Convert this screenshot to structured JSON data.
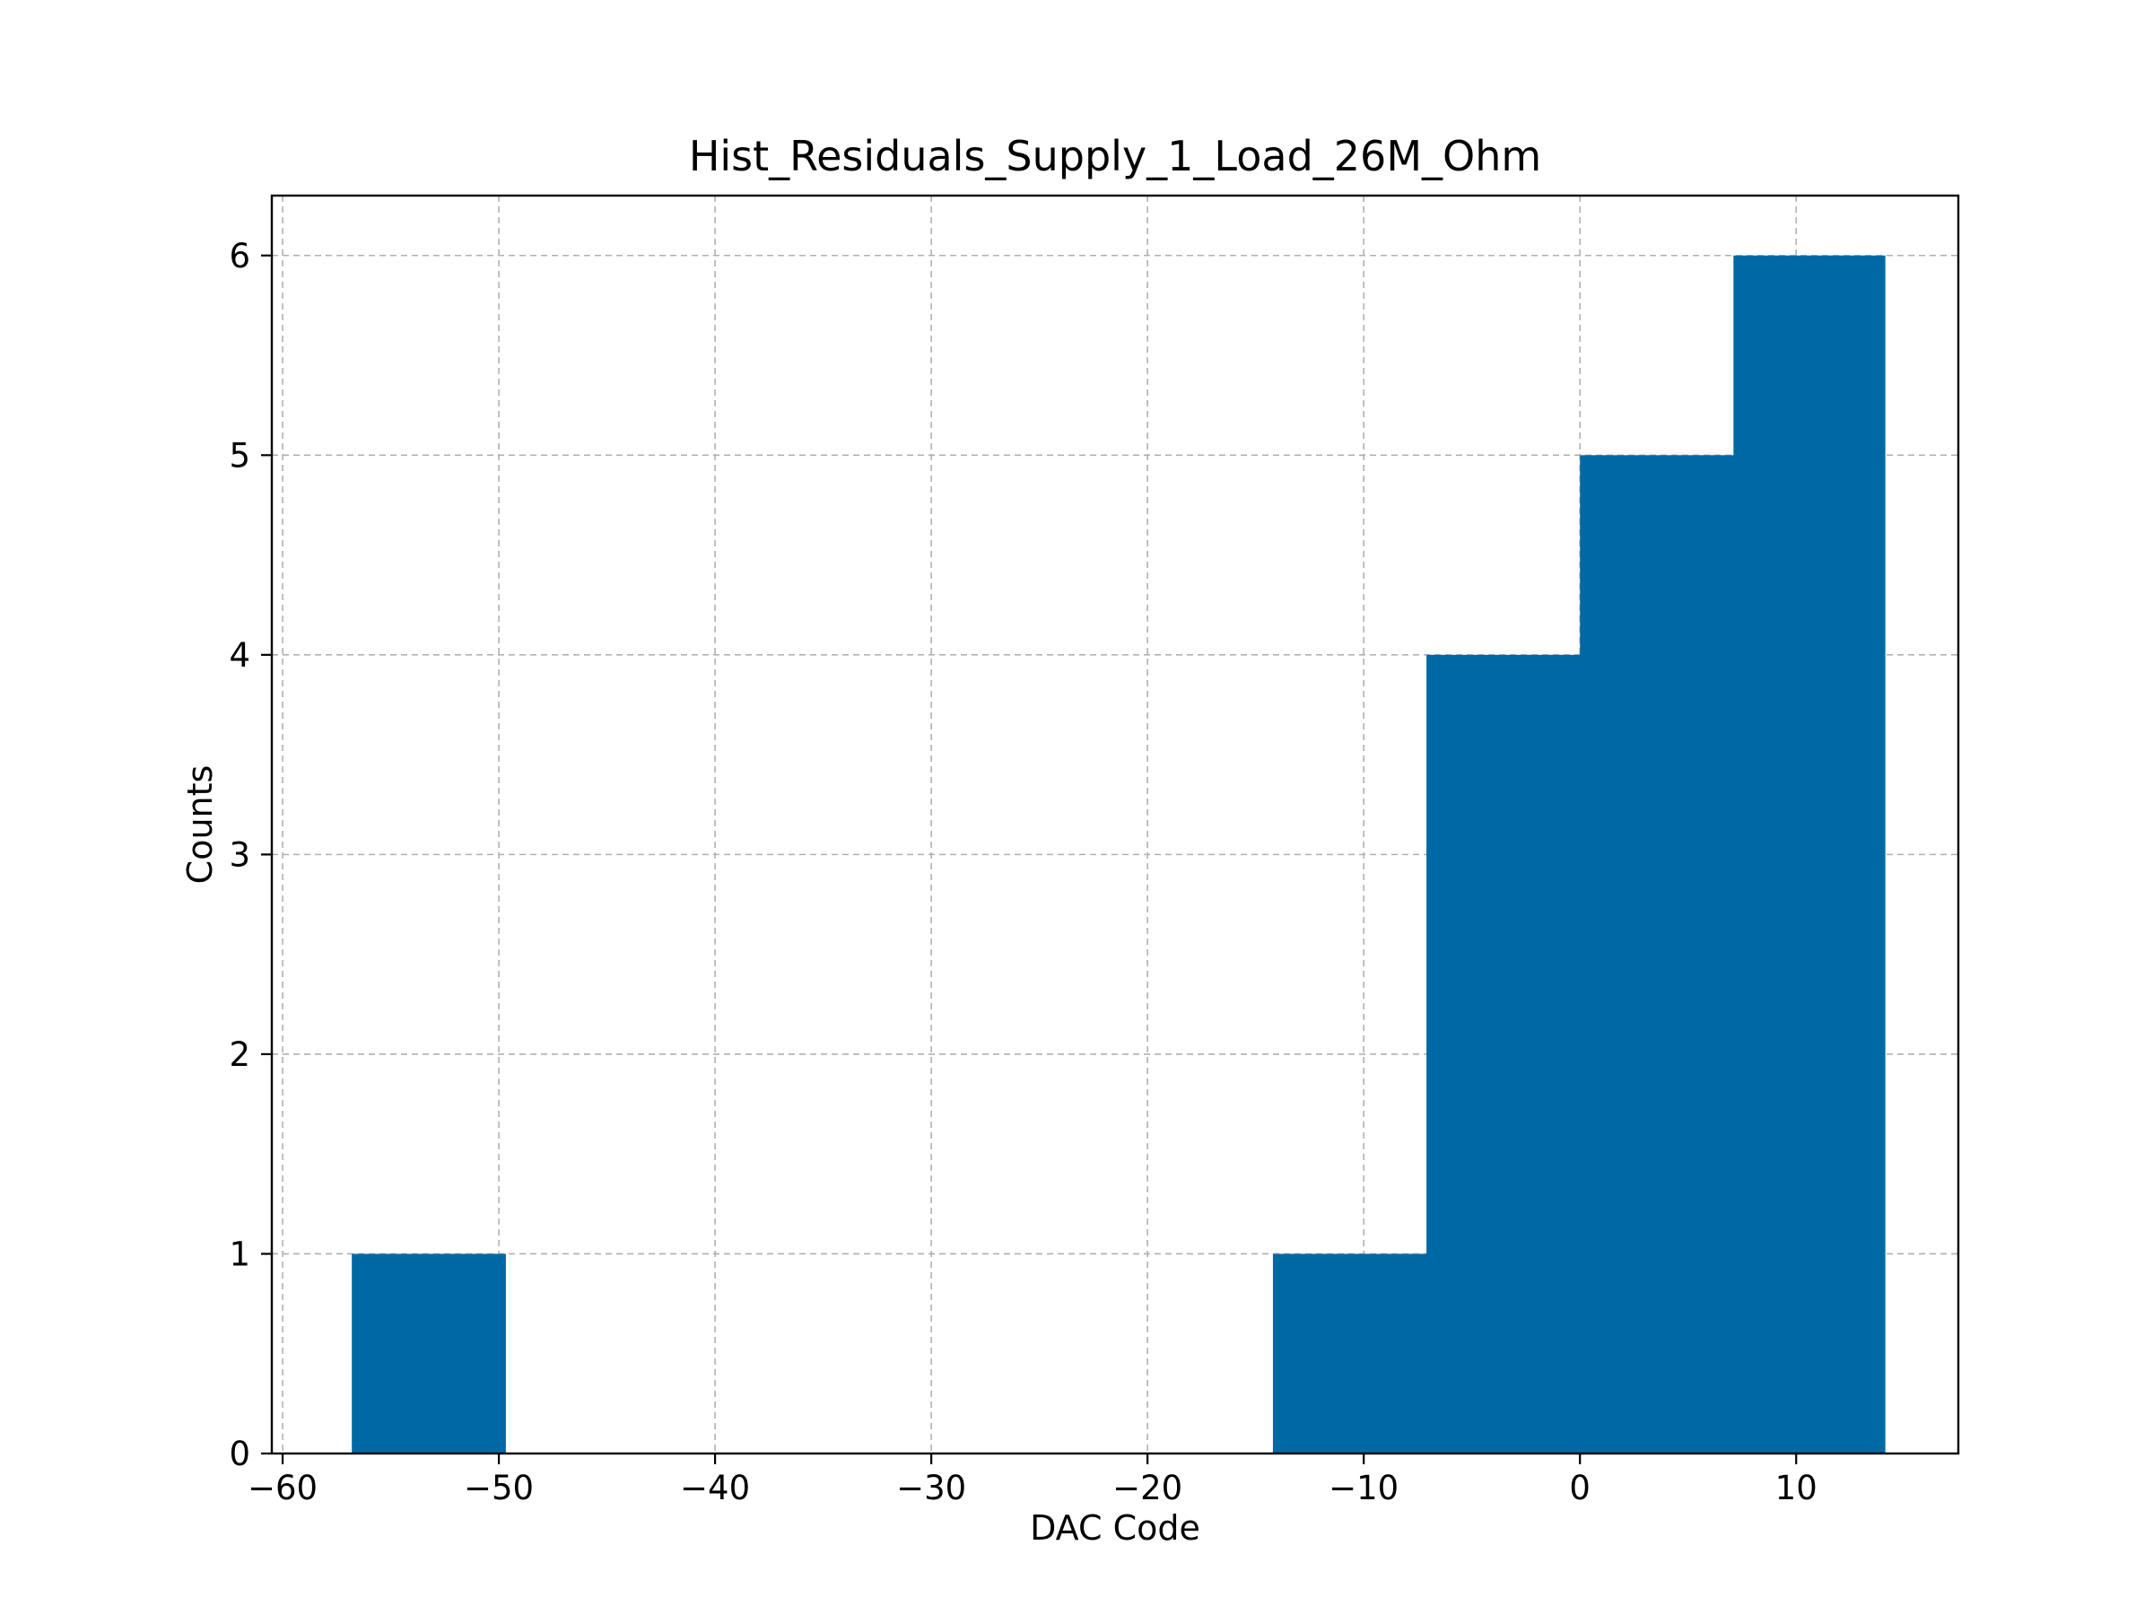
{
  "chart_data": {
    "type": "bar",
    "subtype": "histogram",
    "title": "Hist_Residuals_Supply_1_Load_26M_Ohm",
    "xlabel": "DAC Code",
    "ylabel": "Counts",
    "xlim": [
      -60.5,
      17.5
    ],
    "ylim": [
      0,
      6.3
    ],
    "xticks": [
      -60,
      -50,
      -40,
      -30,
      -20,
      -10,
      0,
      10
    ],
    "xtick_labels": [
      "−60",
      "−50",
      "−40",
      "−30",
      "−20",
      "−10",
      "0",
      "10"
    ],
    "yticks": [
      0,
      1,
      2,
      3,
      4,
      5,
      6
    ],
    "ytick_labels": [
      "0",
      "1",
      "2",
      "3",
      "4",
      "5",
      "6"
    ],
    "bin_edges": [
      -56.8,
      -49.7,
      -42.6,
      -35.5,
      -28.4,
      -21.3,
      -14.2,
      -7.1,
      0.0,
      7.1,
      14.1
    ],
    "counts": [
      1,
      0,
      0,
      0,
      0,
      0,
      1,
      4,
      5,
      6
    ],
    "grid": true,
    "legend": "none",
    "colors": {
      "bar": "#0069a4",
      "grid": "#b0b0b0",
      "axes": "#000000"
    }
  }
}
